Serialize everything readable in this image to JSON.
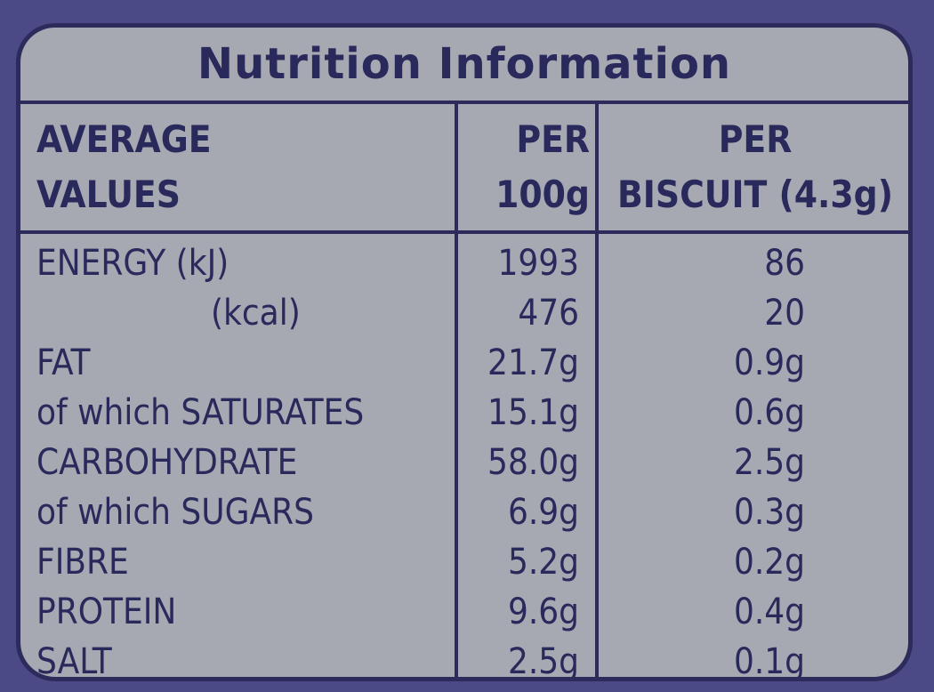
{
  "title": "Nutrition Information",
  "headers": {
    "col1_line1": "AVERAGE",
    "col1_line2": "VALUES",
    "col2_line1": "PER",
    "col2_line2": "100g",
    "col3_line1": "PER",
    "col3_line2": "BISCUIT (4.3g)"
  },
  "rows": [
    {
      "label": "ENERGY (kJ)",
      "per100": "1993",
      "perBiscuit": "86",
      "indent": false
    },
    {
      "label": "(kcal)",
      "per100": "476",
      "perBiscuit": "20",
      "indent": true
    },
    {
      "label": "FAT",
      "per100": "21.7g",
      "perBiscuit": "0.9g",
      "indent": false
    },
    {
      "label": "of which SATURATES",
      "per100": "15.1g",
      "perBiscuit": "0.6g",
      "indent": false
    },
    {
      "label": "CARBOHYDRATE",
      "per100": "58.0g",
      "perBiscuit": "2.5g",
      "indent": false
    },
    {
      "label": "of which SUGARS",
      "per100": "6.9g",
      "perBiscuit": "0.3g",
      "indent": false
    },
    {
      "label": "FIBRE",
      "per100": "5.2g",
      "perBiscuit": "0.2g",
      "indent": false
    },
    {
      "label": "PROTEIN",
      "per100": "9.6g",
      "perBiscuit": "0.4g",
      "indent": false
    },
    {
      "label": "SALT",
      "per100": "2.5g",
      "perBiscuit": "0.1g",
      "indent": false
    }
  ],
  "colors": {
    "background": "#4b4a86",
    "panel": "#a6a8b2",
    "ink": "#2a295c"
  }
}
